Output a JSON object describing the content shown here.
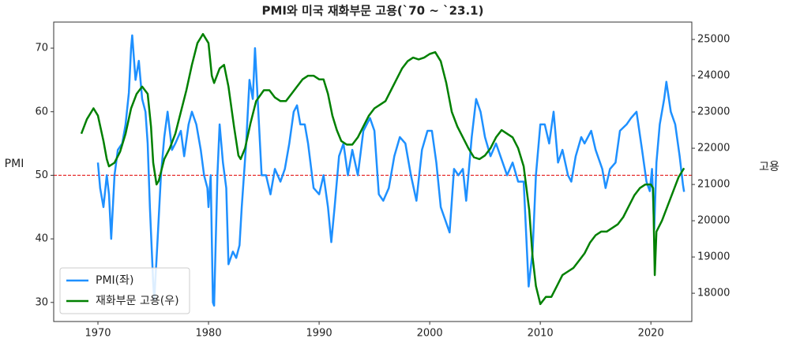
{
  "chart_data": {
    "type": "line",
    "title": "PMI와 미국 재화부문 고용(`70 ~ `23.1)",
    "ylabel": "PMI",
    "y2label": "고용",
    "xlim": [
      1966,
      2023.7
    ],
    "xticks": [
      1970,
      1980,
      1990,
      2000,
      2010,
      2020
    ],
    "ylim": [
      27,
      74.1
    ],
    "yticks": [
      30,
      40,
      50,
      60,
      70
    ],
    "y2lim": [
      17220,
      25480
    ],
    "y2ticks": [
      18000,
      19000,
      20000,
      21000,
      22000,
      23000,
      24000,
      25000
    ],
    "hline": 50,
    "hline_color": "#e00000",
    "legend": "lower left",
    "series": [
      {
        "name": "PMI(좌)",
        "color": "#1e90ff",
        "x": [
          1970.0,
          1970.2,
          1970.5,
          1970.8,
          1971.0,
          1971.2,
          1971.5,
          1971.8,
          1972.2,
          1972.5,
          1972.8,
          1973.0,
          1973.1,
          1973.4,
          1973.7,
          1974.0,
          1974.3,
          1974.5,
          1974.7,
          1975.0,
          1975.1,
          1975.4,
          1975.7,
          1976.0,
          1976.3,
          1976.7,
          1977.0,
          1977.5,
          1977.8,
          1978.2,
          1978.5,
          1978.9,
          1979.3,
          1979.6,
          1979.9,
          1980.0,
          1980.2,
          1980.4,
          1980.5,
          1980.8,
          1981.0,
          1981.3,
          1981.6,
          1981.8,
          1982.2,
          1982.5,
          1982.8,
          1983.0,
          1983.4,
          1983.7,
          1984.0,
          1984.2,
          1984.5,
          1984.8,
          1985.2,
          1985.6,
          1986.0,
          1986.5,
          1986.9,
          1987.3,
          1987.7,
          1988.0,
          1988.3,
          1988.7,
          1989.0,
          1989.5,
          1990.0,
          1990.4,
          1990.8,
          1991.1,
          1991.4,
          1991.8,
          1992.2,
          1992.6,
          1993.0,
          1993.5,
          1994.0,
          1994.6,
          1995.0,
          1995.4,
          1995.8,
          1996.3,
          1996.8,
          1997.3,
          1997.8,
          1998.3,
          1998.8,
          1999.3,
          1999.8,
          2000.2,
          2000.6,
          2001.0,
          2001.4,
          2001.8,
          2002.2,
          2002.6,
          2003.0,
          2003.3,
          2003.8,
          2004.2,
          2004.6,
          2005.0,
          2005.5,
          2006.0,
          2006.6,
          2007.0,
          2007.5,
          2008.0,
          2008.5,
          2008.8,
          2008.95,
          2009.3,
          2009.6,
          2010.0,
          2010.4,
          2010.8,
          2011.2,
          2011.6,
          2012.0,
          2012.5,
          2012.8,
          2013.2,
          2013.7,
          2014.0,
          2014.6,
          2015.0,
          2015.6,
          2015.9,
          2016.3,
          2016.8,
          2017.2,
          2017.8,
          2018.2,
          2018.7,
          2019.2,
          2019.6,
          2019.9,
          2020.1,
          2020.3,
          2020.5,
          2020.8,
          2021.2,
          2021.4,
          2021.8,
          2022.2,
          2022.6,
          2022.9,
          2023.0
        ],
        "values": [
          52,
          48,
          45,
          50,
          47,
          40,
          50,
          54,
          55,
          58,
          63,
          70,
          72,
          65,
          68,
          62,
          60,
          55,
          45,
          33,
          30.5,
          40,
          50,
          56,
          60,
          54,
          55,
          57,
          53,
          58,
          60,
          58,
          54,
          50,
          48,
          45,
          50,
          30,
          29.5,
          50,
          58,
          52,
          48,
          36,
          38,
          37,
          39,
          45,
          55,
          65,
          62,
          70,
          60,
          50,
          50,
          47,
          51,
          49,
          51,
          55,
          60,
          61,
          58,
          58,
          55,
          48,
          47,
          50,
          45,
          39.5,
          45,
          53,
          55,
          50,
          54,
          50,
          57,
          59,
          57,
          47,
          46,
          48,
          53,
          56,
          55,
          50,
          46,
          54,
          57,
          57,
          52,
          45,
          43,
          41,
          51,
          50,
          51,
          46,
          56,
          62,
          60,
          56,
          53,
          55,
          52,
          50,
          52,
          49,
          49,
          38,
          32.5,
          38,
          50,
          58,
          58,
          55,
          60,
          52,
          54,
          50,
          49,
          53,
          56,
          55,
          57,
          54,
          51,
          48,
          51,
          52,
          57,
          58,
          59,
          60,
          54,
          49,
          47.5,
          51,
          41.5,
          52,
          58,
          62,
          64.7,
          60,
          58,
          53,
          48.5,
          47.4
        ]
      },
      {
        "name": "재화부문 고용(우)",
        "color": "#008000",
        "axis": "y2",
        "x": [
          1968.5,
          1969.0,
          1969.6,
          1970.0,
          1970.5,
          1970.8,
          1971.0,
          1971.5,
          1972.0,
          1972.5,
          1973.0,
          1973.5,
          1974.0,
          1974.5,
          1974.8,
          1975.0,
          1975.3,
          1975.5,
          1976.0,
          1976.5,
          1977.0,
          1977.5,
          1978.0,
          1978.5,
          1979.0,
          1979.5,
          1980.0,
          1980.3,
          1980.5,
          1981.0,
          1981.4,
          1981.8,
          1982.3,
          1982.7,
          1982.9,
          1983.3,
          1983.8,
          1984.3,
          1985.0,
          1985.5,
          1986.0,
          1986.5,
          1987.0,
          1987.5,
          1988.0,
          1988.5,
          1989.0,
          1989.5,
          1990.0,
          1990.4,
          1990.8,
          1991.2,
          1991.6,
          1992.0,
          1992.5,
          1993.0,
          1993.5,
          1994.0,
          1994.5,
          1995.0,
          1995.5,
          1996.0,
          1996.5,
          1997.0,
          1997.5,
          1998.0,
          1998.5,
          1999.0,
          1999.5,
          2000.0,
          2000.5,
          2001.0,
          2001.5,
          2002.0,
          2002.5,
          2003.0,
          2003.5,
          2004.0,
          2004.5,
          2005.0,
          2005.5,
          2006.0,
          2006.5,
          2007.0,
          2007.5,
          2008.0,
          2008.5,
          2009.0,
          2009.3,
          2009.6,
          2010.0,
          2010.5,
          2011.0,
          2011.5,
          2012.0,
          2012.5,
          2013.0,
          2013.5,
          2014.0,
          2014.5,
          2015.0,
          2015.5,
          2016.0,
          2016.5,
          2017.0,
          2017.5,
          2018.0,
          2018.5,
          2019.0,
          2019.5,
          2020.0,
          2020.2,
          2020.35,
          2020.5,
          2021.0,
          2021.5,
          2022.0,
          2022.5,
          2023.0
        ],
        "values": [
          22400,
          22800,
          23100,
          22900,
          22200,
          21700,
          21500,
          21600,
          21900,
          22400,
          23100,
          23500,
          23700,
          23500,
          22600,
          21600,
          21000,
          21100,
          21700,
          22000,
          22400,
          23000,
          23600,
          24300,
          24900,
          25150,
          24900,
          24000,
          23800,
          24200,
          24300,
          23700,
          22600,
          21800,
          21700,
          22000,
          22700,
          23300,
          23600,
          23600,
          23400,
          23300,
          23300,
          23500,
          23700,
          23900,
          24000,
          24000,
          23900,
          23900,
          23500,
          22900,
          22500,
          22200,
          22100,
          22100,
          22300,
          22600,
          22900,
          23100,
          23200,
          23300,
          23600,
          23900,
          24200,
          24400,
          24500,
          24450,
          24500,
          24600,
          24650,
          24400,
          23800,
          23000,
          22600,
          22300,
          22000,
          21750,
          21700,
          21800,
          22000,
          22300,
          22500,
          22400,
          22300,
          22000,
          21500,
          20300,
          19000,
          18200,
          17700,
          17900,
          17900,
          18200,
          18500,
          18600,
          18700,
          18900,
          19100,
          19400,
          19600,
          19700,
          19700,
          19800,
          19900,
          20100,
          20400,
          20700,
          20900,
          21000,
          21000,
          20900,
          18500,
          19700,
          20000,
          20400,
          20800,
          21200,
          21450
        ]
      }
    ]
  }
}
